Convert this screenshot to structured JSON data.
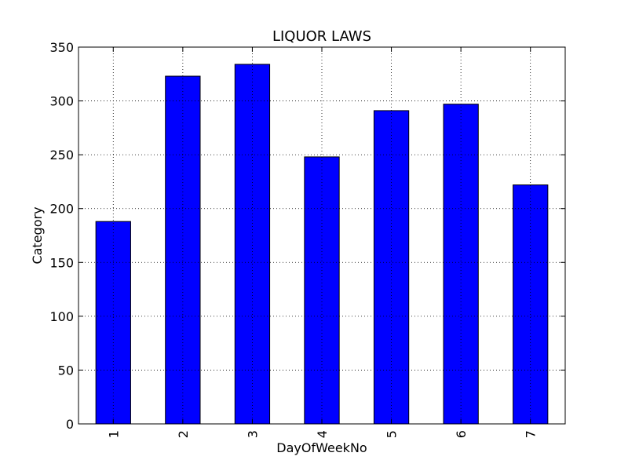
{
  "chart_data": {
    "type": "bar",
    "title": "LIQUOR LAWS",
    "xlabel": "DayOfWeekNo",
    "ylabel": "Category",
    "categories": [
      "1",
      "2",
      "3",
      "4",
      "5",
      "6",
      "7"
    ],
    "values": [
      188,
      323,
      334,
      248,
      291,
      297,
      222
    ],
    "ylim": [
      0,
      350
    ],
    "yticks": [
      "0",
      "50",
      "100",
      "150",
      "200",
      "250",
      "300",
      "350"
    ],
    "grid": true,
    "bar_color": "#0000ff"
  }
}
